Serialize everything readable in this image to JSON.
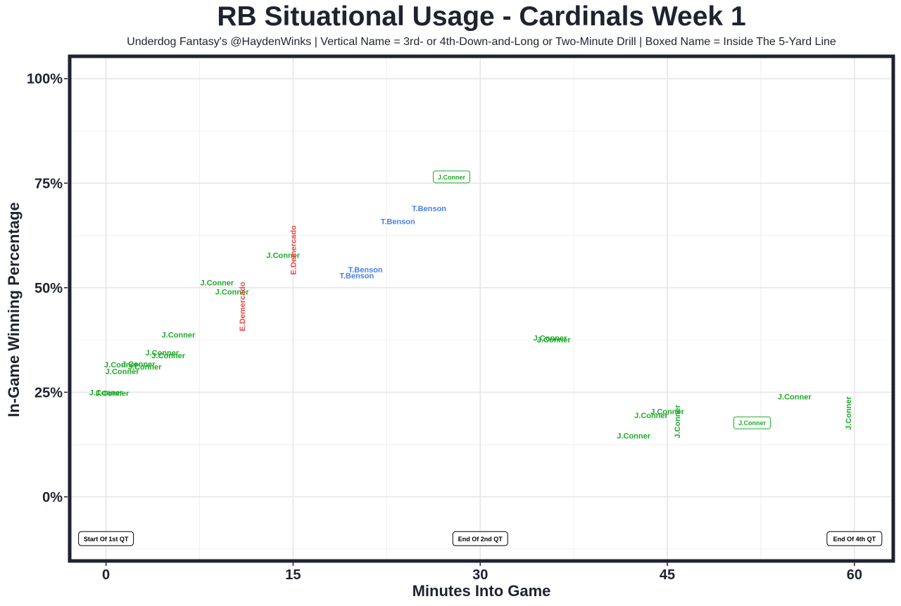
{
  "chart_data": {
    "type": "scatter",
    "title": "RB Situational Usage - Cardinals Week 1",
    "subtitle": "Underdog Fantasy's @HaydenWinks | Vertical Name = 3rd- or 4th-Down-and-Long or Two-Minute Drill | Boxed Name = Inside The 5-Yard Line",
    "xlabel": "Minutes Into Game",
    "ylabel": "In-Game Winning Percentage",
    "xlim": [
      -2.8,
      63
    ],
    "ylim": [
      -15,
      105
    ],
    "xticks": [
      0,
      15,
      30,
      45,
      60
    ],
    "yticks": [
      0,
      25,
      50,
      75,
      100
    ],
    "ytick_labels": [
      "0%",
      "25%",
      "50%",
      "75%",
      "100%"
    ],
    "grid": true,
    "colors": {
      "J.Conner": "#1faa2a",
      "T.Benson": "#4a80e8",
      "E.Demercado": "#e84a4a"
    },
    "points": [
      {
        "label": "J.Conner",
        "x": 0,
        "y": 25,
        "style": "normal"
      },
      {
        "label": "J.Conner",
        "x": 0.5,
        "y": 24.8,
        "style": "normal"
      },
      {
        "label": "J.Conner",
        "x": 1.3,
        "y": 30,
        "style": "normal"
      },
      {
        "label": "J.Conner",
        "x": 1.2,
        "y": 31.6,
        "style": "normal"
      },
      {
        "label": "J.Conner",
        "x": 2.6,
        "y": 31.8,
        "style": "normal"
      },
      {
        "label": "J.Conner",
        "x": 3.1,
        "y": 31.1,
        "style": "normal"
      },
      {
        "label": "J.Conner",
        "x": 4.5,
        "y": 34.5,
        "style": "normal"
      },
      {
        "label": "J.Conner",
        "x": 5.0,
        "y": 33.8,
        "style": "normal"
      },
      {
        "label": "J.Conner",
        "x": 5.8,
        "y": 38.8,
        "style": "normal"
      },
      {
        "label": "J.Conner",
        "x": 8.9,
        "y": 51.2,
        "style": "normal"
      },
      {
        "label": "J.Conner",
        "x": 10.1,
        "y": 49,
        "style": "normal"
      },
      {
        "label": "E.Demercado",
        "x": 10.9,
        "y": 45.5,
        "style": "vertical"
      },
      {
        "label": "J.Conner",
        "x": 14.2,
        "y": 57.8,
        "style": "normal"
      },
      {
        "label": "E.Demercado",
        "x": 15,
        "y": 59,
        "style": "vertical"
      },
      {
        "label": "T.Benson",
        "x": 20.8,
        "y": 54.3,
        "style": "normal"
      },
      {
        "label": "T.Benson",
        "x": 20.1,
        "y": 52.9,
        "style": "normal"
      },
      {
        "label": "T.Benson",
        "x": 23.4,
        "y": 65.9,
        "style": "normal"
      },
      {
        "label": "T.Benson",
        "x": 25.9,
        "y": 69,
        "style": "normal"
      },
      {
        "label": "J.Conner",
        "x": 27.7,
        "y": 76.5,
        "style": "boxed"
      },
      {
        "label": "J.Conner",
        "x": 35.6,
        "y": 38,
        "style": "normal"
      },
      {
        "label": "J.Conner",
        "x": 35.9,
        "y": 37.6,
        "style": "normal"
      },
      {
        "label": "J.Conner",
        "x": 42.3,
        "y": 14.6,
        "style": "normal"
      },
      {
        "label": "J.Conner",
        "x": 43.7,
        "y": 19.5,
        "style": "normal"
      },
      {
        "label": "J.Conner",
        "x": 45,
        "y": 20.4,
        "style": "normal"
      },
      {
        "label": "J.Conner",
        "x": 45.8,
        "y": 18,
        "style": "vertical"
      },
      {
        "label": "J.Conner",
        "x": 51.8,
        "y": 17.7,
        "style": "boxed"
      },
      {
        "label": "J.Conner",
        "x": 55.2,
        "y": 24,
        "style": "normal"
      },
      {
        "label": "J.Conner",
        "x": 59.5,
        "y": 20,
        "style": "vertical"
      }
    ],
    "annotations": [
      {
        "text": "Start Of 1st QT",
        "x": 0,
        "y": -10
      },
      {
        "text": "End Of 2nd QT",
        "x": 30,
        "y": -10
      },
      {
        "text": "End Of 4th QT",
        "x": 60,
        "y": -10
      }
    ]
  }
}
